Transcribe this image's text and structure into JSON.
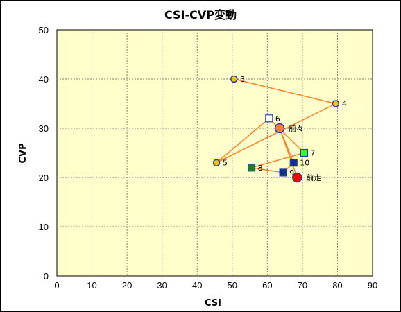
{
  "chart_data": {
    "type": "scatter",
    "title": "CSI-CVP変動",
    "xlabel": "CSI",
    "ylabel": "CVP",
    "xlim": [
      0,
      90
    ],
    "ylim": [
      0,
      50
    ],
    "xticks": [
      0,
      10,
      20,
      30,
      40,
      50,
      60,
      70,
      80,
      90
    ],
    "yticks": [
      0,
      10,
      20,
      30,
      40,
      50
    ],
    "grid": true,
    "colors": {
      "plot_bg": "#ffffcc",
      "grid": "#808080",
      "line": "#ff7f27",
      "outline": "#1f3fb0",
      "circle_fill": "#ffc000",
      "open_square_fill": "#ffffff",
      "green_fill": "#33ff33",
      "dark_green_fill": "#1f7f1f",
      "navy_fill": "#0f2f9f",
      "orange_fill": "#ff7f27",
      "red_fill": "#ff0000"
    },
    "points": [
      {
        "label": "3",
        "x": 50.5,
        "y": 40,
        "marker": "circle",
        "fill": "#ffc000"
      },
      {
        "label": "4",
        "x": 79.5,
        "y": 35,
        "marker": "circle",
        "fill": "#ffc000"
      },
      {
        "label": "5",
        "x": 45.5,
        "y": 23,
        "marker": "circle",
        "fill": "#ffc000"
      },
      {
        "label": "6",
        "x": 60.5,
        "y": 32,
        "marker": "square",
        "fill": "#ffffff"
      },
      {
        "label": "7",
        "x": 70.5,
        "y": 25,
        "marker": "square",
        "fill": "#33ff33"
      },
      {
        "label": "8",
        "x": 55.5,
        "y": 22,
        "marker": "square",
        "fill": "#1f7f1f"
      },
      {
        "label": "9",
        "x": 64.5,
        "y": 21,
        "marker": "square",
        "fill": "#0f2f9f"
      },
      {
        "label": "10",
        "x": 67.5,
        "y": 23,
        "marker": "square",
        "fill": "#0f2f9f"
      },
      {
        "label": "前々",
        "x": 63.5,
        "y": 30,
        "marker": "circle-large",
        "fill": "#ff7f27"
      },
      {
        "label": "前走",
        "x": 68.5,
        "y": 20,
        "marker": "circle-large",
        "fill": "#ff0000"
      }
    ]
  }
}
